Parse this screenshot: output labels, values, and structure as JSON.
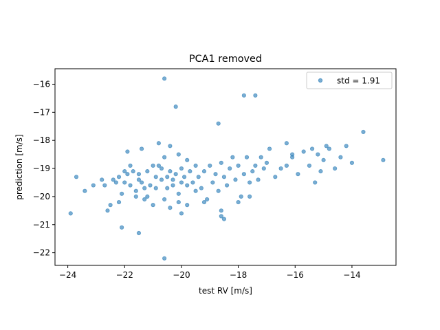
{
  "chart_data": {
    "type": "scatter",
    "title": "PCA1 removed",
    "xlabel": "test RV [m/s]",
    "ylabel": "prediction [m/s]",
    "xlim": [
      -24.45,
      -12.45
    ],
    "ylim": [
      -22.45,
      -15.45
    ],
    "xticks": [
      -24,
      -22,
      -20,
      -18,
      -16,
      -14
    ],
    "xtick_labels": [
      "−24",
      "−22",
      "−20",
      "−18",
      "−16",
      "−14"
    ],
    "yticks": [
      -22,
      -21,
      -20,
      -19,
      -18,
      -17,
      -16
    ],
    "ytick_labels": [
      "−22",
      "−21",
      "−20",
      "−19",
      "−18",
      "−17",
      "−16"
    ],
    "grid": false,
    "legend_position": "top-right",
    "series": [
      {
        "name": "std = 1.91",
        "color": "#1f77b4",
        "alpha": 0.6,
        "marker": "circle",
        "points": [
          [
            -23.9,
            -20.6
          ],
          [
            -23.7,
            -19.3
          ],
          [
            -23.4,
            -19.8
          ],
          [
            -23.1,
            -19.6
          ],
          [
            -22.8,
            -19.4
          ],
          [
            -22.7,
            -19.6
          ],
          [
            -22.6,
            -20.5
          ],
          [
            -22.5,
            -20.3
          ],
          [
            -22.4,
            -19.4
          ],
          [
            -22.3,
            -19.5
          ],
          [
            -22.2,
            -19.3
          ],
          [
            -22.2,
            -20.2
          ],
          [
            -22.1,
            -19.9
          ],
          [
            -22.0,
            -19.1
          ],
          [
            -22.0,
            -19.5
          ],
          [
            -21.9,
            -18.4
          ],
          [
            -21.9,
            -19.2
          ],
          [
            -21.8,
            -18.9
          ],
          [
            -21.8,
            -19.6
          ],
          [
            -21.7,
            -19.1
          ],
          [
            -21.6,
            -19.8
          ],
          [
            -21.6,
            -20.0
          ],
          [
            -21.5,
            -19.4
          ],
          [
            -21.5,
            -19.2
          ],
          [
            -21.4,
            -18.3
          ],
          [
            -21.4,
            -19.5
          ],
          [
            -21.3,
            -19.7
          ],
          [
            -21.3,
            -20.1
          ],
          [
            -21.2,
            -19.1
          ],
          [
            -21.1,
            -19.6
          ],
          [
            -21.0,
            -18.9
          ],
          [
            -20.9,
            -19.3
          ],
          [
            -20.9,
            -19.7
          ],
          [
            -20.8,
            -18.1
          ],
          [
            -20.8,
            -18.9
          ],
          [
            -20.7,
            -19.4
          ],
          [
            -20.7,
            -19.0
          ],
          [
            -20.6,
            -18.6
          ],
          [
            -20.5,
            -19.7
          ],
          [
            -20.5,
            -19.3
          ],
          [
            -20.4,
            -18.2
          ],
          [
            -20.4,
            -19.1
          ],
          [
            -20.3,
            -19.4
          ],
          [
            -20.3,
            -19.6
          ],
          [
            -20.2,
            -19.2
          ],
          [
            -20.1,
            -18.5
          ],
          [
            -20.1,
            -19.9
          ],
          [
            -20.0,
            -19.0
          ],
          [
            -20.0,
            -19.5
          ],
          [
            -19.9,
            -19.3
          ],
          [
            -19.8,
            -18.7
          ],
          [
            -19.8,
            -19.6
          ],
          [
            -19.7,
            -19.1
          ],
          [
            -19.6,
            -19.5
          ],
          [
            -19.5,
            -18.9
          ],
          [
            -19.5,
            -19.8
          ],
          [
            -19.4,
            -19.3
          ],
          [
            -19.3,
            -19.7
          ],
          [
            -19.2,
            -19.1
          ],
          [
            -19.1,
            -20.1
          ],
          [
            -19.0,
            -18.9
          ],
          [
            -18.9,
            -19.5
          ],
          [
            -18.8,
            -19.2
          ],
          [
            -18.7,
            -19.8
          ],
          [
            -18.6,
            -18.8
          ],
          [
            -18.5,
            -19.3
          ],
          [
            -18.4,
            -19.6
          ],
          [
            -18.3,
            -19.0
          ],
          [
            -18.2,
            -18.6
          ],
          [
            -18.1,
            -19.4
          ],
          [
            -18.0,
            -18.9
          ],
          [
            -17.9,
            -20.0
          ],
          [
            -17.8,
            -19.2
          ],
          [
            -17.7,
            -18.6
          ],
          [
            -17.6,
            -19.5
          ],
          [
            -17.5,
            -19.1
          ],
          [
            -17.4,
            -18.9
          ],
          [
            -17.3,
            -19.4
          ],
          [
            -17.2,
            -18.6
          ],
          [
            -17.1,
            -19.0
          ],
          [
            -17.0,
            -18.8
          ],
          [
            -16.9,
            -18.3
          ],
          [
            -16.7,
            -19.3
          ],
          [
            -16.5,
            -19.0
          ],
          [
            -16.3,
            -18.9
          ],
          [
            -16.1,
            -18.6
          ],
          [
            -15.9,
            -19.2
          ],
          [
            -15.7,
            -18.4
          ],
          [
            -15.5,
            -18.9
          ],
          [
            -15.3,
            -19.5
          ],
          [
            -15.1,
            -19.1
          ],
          [
            -15.0,
            -18.7
          ],
          [
            -14.8,
            -18.3
          ],
          [
            -14.6,
            -19.0
          ],
          [
            -14.4,
            -18.6
          ],
          [
            -14.2,
            -18.2
          ],
          [
            -14.0,
            -18.8
          ],
          [
            -20.6,
            -15.8
          ],
          [
            -20.2,
            -16.8
          ],
          [
            -17.8,
            -16.4
          ],
          [
            -17.4,
            -16.4
          ],
          [
            -18.7,
            -17.4
          ],
          [
            -13.6,
            -17.7
          ],
          [
            -12.9,
            -18.7
          ],
          [
            -20.6,
            -22.2
          ],
          [
            -22.1,
            -21.1
          ],
          [
            -21.5,
            -21.3
          ],
          [
            -20.0,
            -20.6
          ],
          [
            -18.5,
            -20.8
          ],
          [
            -18.6,
            -20.7
          ],
          [
            -16.3,
            -18.1
          ],
          [
            -16.1,
            -18.5
          ],
          [
            -15.4,
            -18.3
          ],
          [
            -15.2,
            -18.5
          ],
          [
            -14.9,
            -18.2
          ],
          [
            -21.0,
            -20.3
          ],
          [
            -21.2,
            -20.0
          ],
          [
            -20.6,
            -20.1
          ],
          [
            -20.4,
            -20.4
          ],
          [
            -20.1,
            -20.2
          ],
          [
            -19.8,
            -20.3
          ],
          [
            -19.2,
            -20.2
          ],
          [
            -18.6,
            -20.5
          ],
          [
            -18.0,
            -20.2
          ],
          [
            -17.6,
            -20.0
          ]
        ]
      }
    ]
  }
}
